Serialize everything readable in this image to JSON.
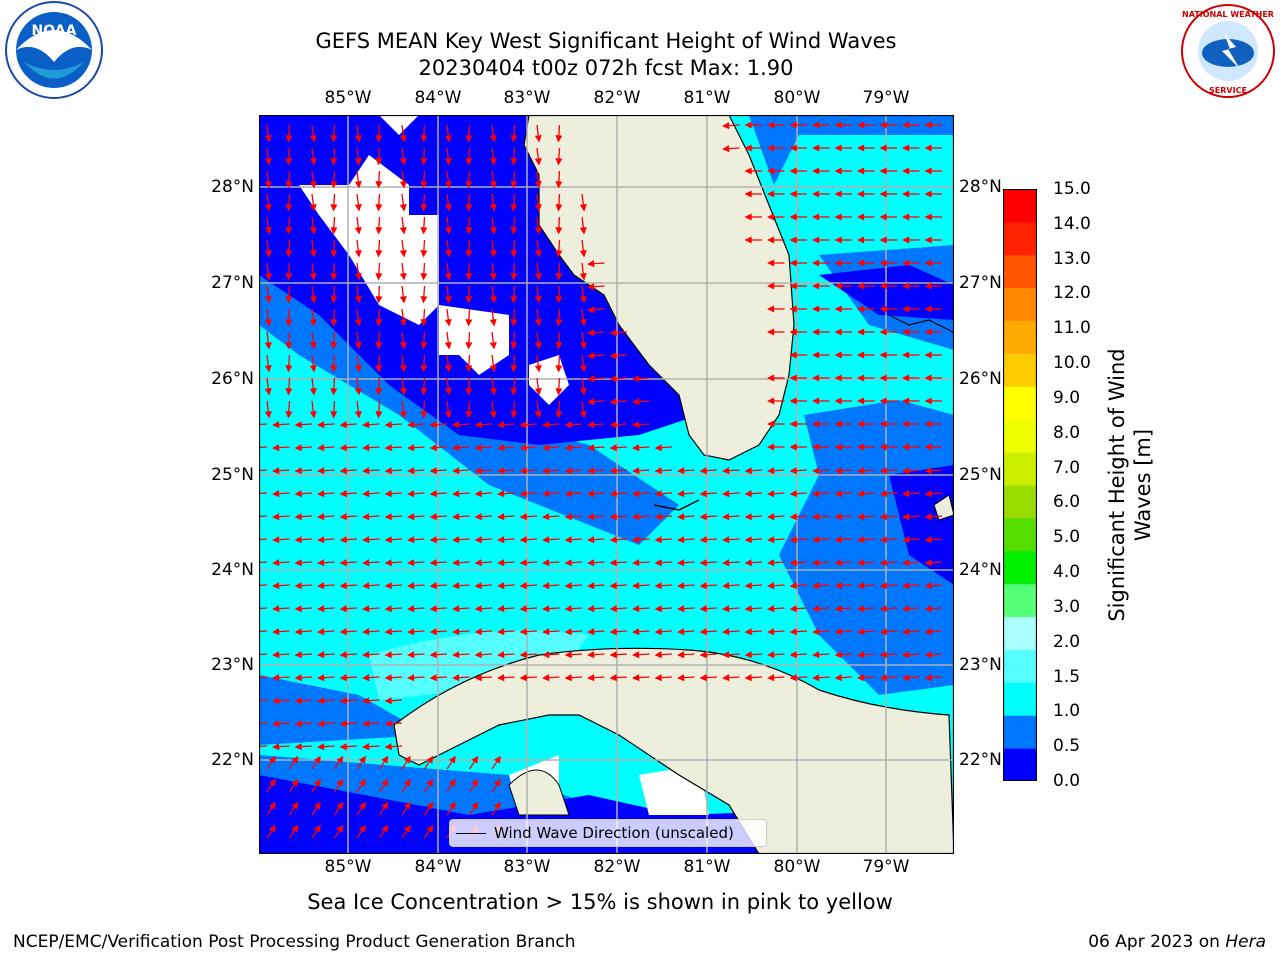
{
  "title_line1": "GEFS MEAN Key West Significant Height of Wind Waves",
  "title_line2": "20230404 t00z 072h fcst   Max: 1.90",
  "lon_ticks": [
    "85°W",
    "84°W",
    "83°W",
    "82°W",
    "81°W",
    "80°W",
    "79°W"
  ],
  "lat_ticks": [
    "28°N",
    "27°N",
    "26°N",
    "25°N",
    "24°N",
    "23°N",
    "22°N"
  ],
  "colorbar": {
    "label": "Significant Height of Wind Waves [m]",
    "ticks": [
      "15.0",
      "14.0",
      "13.0",
      "12.0",
      "11.0",
      "10.0",
      "9.0",
      "8.0",
      "7.0",
      "6.0",
      "5.0",
      "4.0",
      "3.0",
      "2.0",
      "1.5",
      "1.0",
      "0.5",
      "0.0"
    ],
    "colors": [
      "#0000ff",
      "#0077ff",
      "#00ffff",
      "#55ffff",
      "#aaffff",
      "#55ff77",
      "#00ee00",
      "#55dd00",
      "#99dd00",
      "#ccee00",
      "#eeff00",
      "#ffff00",
      "#ffcc00",
      "#ffaa00",
      "#ff8800",
      "#ff5500",
      "#ff2200",
      "#ff0000"
    ]
  },
  "legend_label": "Wind Wave Direction (unscaled)",
  "footer_note": "Sea Ice Concentration > 15% is shown in pink to yellow",
  "credit_left": "NCEP/EMC/Verification Post Processing Product Generation Branch",
  "credit_right_date": "06 Apr 2023 on ",
  "credit_right_host": "Hera",
  "logos": {
    "left": "NOAA logo",
    "right": "National Weather Service logo"
  },
  "colors": {
    "land": "#eeeedd",
    "arrow": "#ff0000",
    "grid": "#b0b0b0",
    "water_low": "#0000ff",
    "water_mid": "#0077ff",
    "water_high": "#00ffff"
  }
}
